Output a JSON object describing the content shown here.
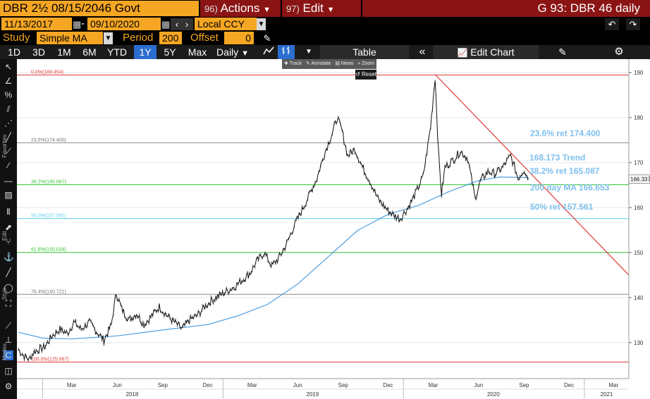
{
  "header": {
    "security": "DBR 2½  08/15/2046 Govt",
    "actions_num": "96)",
    "actions_label": "Actions",
    "edit_num": "97)",
    "edit_label": "Edit",
    "window_title": "G 93: DBR 46 daily"
  },
  "range": {
    "start": "11/13/2017",
    "end": "09/10/2020",
    "currency": "Local CCY"
  },
  "study": {
    "label": "Study",
    "value": "Simple MA",
    "period_label": "Period",
    "period_value": "200",
    "offset_label": "Offset",
    "offset_value": "0"
  },
  "toolbar": {
    "periods": [
      "1D",
      "3D",
      "1M",
      "6M",
      "YTD",
      "1Y",
      "5Y",
      "Max"
    ],
    "selected_period": "1Y",
    "frequency": "Daily",
    "table_label": "Table",
    "edit_chart_label": "Edit Chart"
  },
  "mini_toolbar": {
    "track": "Track",
    "annotate": "Annotate",
    "news": "News",
    "zoom": "Zoom",
    "reset": "Reset"
  },
  "sidebar": {
    "favorites": "Favorites",
    "edit": "Edit",
    "style": "Style",
    "modes": "Modes"
  },
  "chart_data": {
    "type": "line",
    "y_ticks": [
      130,
      140,
      150,
      160,
      170,
      180,
      190
    ],
    "ylim": [
      122,
      193
    ],
    "last_price": "166.337",
    "x_ticks": [
      "Mar",
      "Jun",
      "Sep",
      "Dec",
      "Mar",
      "Jun",
      "Sep",
      "Dec",
      "Mar",
      "Jun",
      "Sep",
      "Dec",
      "Mar"
    ],
    "years": [
      "2018",
      "2019",
      "2020",
      "2021"
    ],
    "fib_levels": [
      {
        "label": "0.0%(189.454)",
        "value": 189.454,
        "color": "#e03a3a"
      },
      {
        "label": "23.6%(174.400)",
        "value": 174.4,
        "color": "#888888"
      },
      {
        "label": "38.2%(165.087)",
        "value": 165.087,
        "color": "#35c435"
      },
      {
        "label": "50.0%(157.561)",
        "value": 157.561,
        "color": "#5ad0e8"
      },
      {
        "label": "61.8%(150.034)",
        "value": 150.034,
        "color": "#35c435"
      },
      {
        "label": "76.4%(140.721)",
        "value": 140.721,
        "color": "#888888"
      },
      {
        "label": "100.0%(125.667)",
        "value": 125.667,
        "color": "#e03a3a"
      }
    ],
    "annotations": [
      {
        "text": "23.6% ret 174.400"
      },
      {
        "text": "168.173 Trend"
      },
      {
        "text": "38.2% ret 165.087"
      },
      {
        "text": "200 day MA 166.653"
      },
      {
        "text": "50% ret 157.561"
      }
    ],
    "price_series": [
      [
        "2017-11-13",
        128.5
      ],
      [
        "2017-11-25",
        127.0
      ],
      [
        "2017-12-05",
        126.3
      ],
      [
        "2017-12-15",
        128.0
      ],
      [
        "2018-01-05",
        129.0
      ],
      [
        "2018-01-20",
        131.5
      ],
      [
        "2018-02-05",
        133.0
      ],
      [
        "2018-02-20",
        132.0
      ],
      [
        "2018-03-05",
        134.5
      ],
      [
        "2018-03-20",
        133.0
      ],
      [
        "2018-04-05",
        134.5
      ],
      [
        "2018-04-20",
        132.5
      ],
      [
        "2018-05-05",
        130.5
      ],
      [
        "2018-05-20",
        134.0
      ],
      [
        "2018-05-30",
        141.0
      ],
      [
        "2018-06-10",
        137.5
      ],
      [
        "2018-06-25",
        135.0
      ],
      [
        "2018-07-10",
        136.5
      ],
      [
        "2018-07-25",
        134.0
      ],
      [
        "2018-08-10",
        136.0
      ],
      [
        "2018-08-25",
        138.0
      ],
      [
        "2018-09-10",
        136.0
      ],
      [
        "2018-09-25",
        134.5
      ],
      [
        "2018-10-10",
        133.0
      ],
      [
        "2018-10-25",
        135.0
      ],
      [
        "2018-11-10",
        136.0
      ],
      [
        "2018-11-25",
        138.0
      ],
      [
        "2018-12-10",
        139.5
      ],
      [
        "2018-12-25",
        140.5
      ],
      [
        "2019-01-10",
        141.5
      ],
      [
        "2019-01-25",
        142.5
      ],
      [
        "2019-02-10",
        144.0
      ],
      [
        "2019-02-25",
        145.5
      ],
      [
        "2019-03-10",
        148.0
      ],
      [
        "2019-03-25",
        150.0
      ],
      [
        "2019-04-10",
        147.0
      ],
      [
        "2019-04-25",
        149.0
      ],
      [
        "2019-05-10",
        152.0
      ],
      [
        "2019-05-25",
        156.0
      ],
      [
        "2019-06-10",
        159.5
      ],
      [
        "2019-06-25",
        163.0
      ],
      [
        "2019-07-10",
        166.5
      ],
      [
        "2019-07-25",
        172.0
      ],
      [
        "2019-08-10",
        176.5
      ],
      [
        "2019-08-20",
        180.0
      ],
      [
        "2019-08-30",
        177.0
      ],
      [
        "2019-09-10",
        171.5
      ],
      [
        "2019-09-25",
        173.0
      ],
      [
        "2019-10-10",
        169.0
      ],
      [
        "2019-10-25",
        166.0
      ],
      [
        "2019-11-10",
        162.0
      ],
      [
        "2019-11-25",
        160.0
      ],
      [
        "2019-12-10",
        158.5
      ],
      [
        "2019-12-25",
        157.5
      ],
      [
        "2020-01-10",
        160.0
      ],
      [
        "2020-01-25",
        163.0
      ],
      [
        "2020-02-10",
        167.0
      ],
      [
        "2020-02-25",
        178.0
      ],
      [
        "2020-03-05",
        189.0
      ],
      [
        "2020-03-12",
        172.0
      ],
      [
        "2020-03-18",
        163.0
      ],
      [
        "2020-03-25",
        169.0
      ],
      [
        "2020-04-10",
        170.5
      ],
      [
        "2020-04-25",
        172.5
      ],
      [
        "2020-05-10",
        171.0
      ],
      [
        "2020-05-25",
        162.0
      ],
      [
        "2020-06-05",
        166.0
      ],
      [
        "2020-06-20",
        168.0
      ],
      [
        "2020-07-05",
        167.5
      ],
      [
        "2020-07-20",
        169.0
      ],
      [
        "2020-08-05",
        171.5
      ],
      [
        "2020-08-20",
        166.5
      ],
      [
        "2020-09-01",
        168.5
      ],
      [
        "2020-09-10",
        166.3
      ]
    ],
    "ma_series": [
      [
        "2017-11-13",
        132.3
      ],
      [
        "2018-01-01",
        131.0
      ],
      [
        "2018-03-01",
        130.8
      ],
      [
        "2018-06-01",
        131.5
      ],
      [
        "2018-09-01",
        132.8
      ],
      [
        "2018-12-01",
        134.0
      ],
      [
        "2019-02-01",
        136.0
      ],
      [
        "2019-04-01",
        138.5
      ],
      [
        "2019-06-01",
        143.0
      ],
      [
        "2019-08-01",
        149.0
      ],
      [
        "2019-10-01",
        155.0
      ],
      [
        "2019-12-01",
        158.5
      ],
      [
        "2020-02-01",
        160.5
      ],
      [
        "2020-04-01",
        163.5
      ],
      [
        "2020-06-01",
        166.0
      ],
      [
        "2020-07-15",
        166.8
      ],
      [
        "2020-09-10",
        166.65
      ]
    ],
    "trend_line": [
      [
        "2020-03-05",
        189.6
      ],
      [
        "2021-04-01",
        145.0
      ]
    ],
    "colors": {
      "price": "#ffffff",
      "ma": "#4f9fe0",
      "trend": "#e03a3a",
      "annotation": "#7fc0ee"
    }
  }
}
